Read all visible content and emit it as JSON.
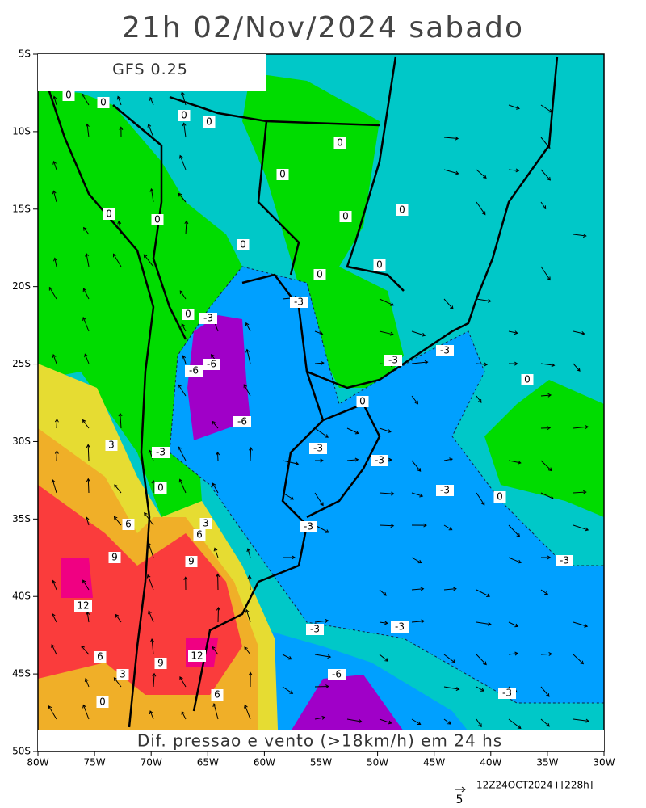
{
  "title": "21h 02/Nov/2024 sabado",
  "model": "GFS 0.25",
  "caption": "Dif. pressao e vento (>18km/h) em 24 hs",
  "footer": "12Z24OCT2024+[228h]",
  "vector_scale": "5",
  "lat_labels": [
    "5S",
    "10S",
    "15S",
    "20S",
    "25S",
    "30S",
    "35S",
    "40S",
    "45S",
    "50S"
  ],
  "lon_labels": [
    "80W",
    "75W",
    "70W",
    "65W",
    "60W",
    "55W",
    "50W",
    "45W",
    "40W",
    "35W",
    "30W"
  ],
  "contour_labels": [
    "0",
    "0",
    "0",
    "0",
    "0",
    "0",
    "0",
    "0",
    "0",
    "0",
    "0",
    "0",
    "0",
    "-3",
    "0",
    "-3",
    "-3",
    "-3",
    "-6",
    "-6",
    "0",
    "0",
    "-6",
    "3",
    "-3",
    "-3",
    "-3",
    "0",
    "-3",
    "0",
    "3",
    "6",
    "6",
    "-3",
    "9",
    "9",
    "-3",
    "12",
    "-3",
    "-3",
    "6",
    "9",
    "12",
    "3",
    "-6",
    "-3",
    "0",
    "6"
  ]
}
